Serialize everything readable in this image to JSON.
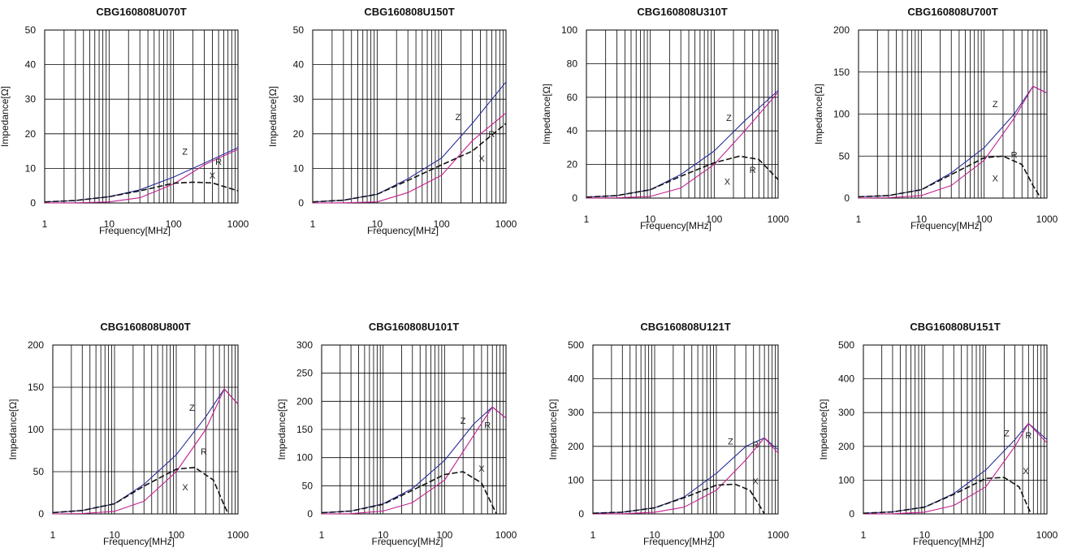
{
  "colors": {
    "Z": "#2b2f9a",
    "R": "#c4208f",
    "X": "#111111",
    "grid": "#000000"
  },
  "chart_data": [
    {
      "type": "line",
      "title": "CBG160808U070T",
      "xlabel": "Frequency[MHz]",
      "ylabel": "Impedance[Ω]",
      "xscale": "log",
      "xlim": [
        1,
        1000
      ],
      "ylim": [
        0,
        50
      ],
      "xticks": [
        1,
        10,
        100,
        1000
      ],
      "xtick_labels": [
        "1",
        "10",
        "100",
        "1000"
      ],
      "yticks": [
        0,
        10,
        20,
        30,
        40,
        50
      ],
      "ytick_labels": [
        "0",
        "10",
        "20",
        "30",
        "40",
        "50"
      ],
      "series": [
        {
          "name": "Z",
          "x": [
            1,
            3,
            10,
            30,
            100,
            300,
            1000
          ],
          "y": [
            0.3,
            0.7,
            1.8,
            3.8,
            7.5,
            11.5,
            16
          ]
        },
        {
          "name": "R",
          "x": [
            1,
            3,
            10,
            30,
            100,
            300,
            1000
          ],
          "y": [
            0,
            0.05,
            0.3,
            1.5,
            5.5,
            11,
            15.5
          ]
        },
        {
          "name": "X",
          "x": [
            1,
            3,
            10,
            30,
            100,
            200,
            400,
            1000
          ],
          "y": [
            0.3,
            0.7,
            1.8,
            3.5,
            5.7,
            6,
            5.8,
            3.5
          ]
        }
      ],
      "labels": [
        {
          "text": "Z",
          "x": 150,
          "y": 14
        },
        {
          "text": "R",
          "x": 500,
          "y": 11
        },
        {
          "text": "X",
          "x": 400,
          "y": 7
        }
      ]
    },
    {
      "type": "line",
      "title": "CBG160808U150T",
      "xlabel": "Frequency[MHz]",
      "ylabel": "Impedance[Ω]",
      "xscale": "log",
      "xlim": [
        1,
        1000
      ],
      "ylim": [
        0,
        50
      ],
      "xticks": [
        1,
        10,
        100,
        1000
      ],
      "xtick_labels": [
        "1",
        "10",
        "100",
        "1000"
      ],
      "yticks": [
        0,
        10,
        20,
        30,
        40,
        50
      ],
      "ytick_labels": [
        "0",
        "10",
        "20",
        "30",
        "40",
        "50"
      ],
      "series": [
        {
          "name": "Z",
          "x": [
            1,
            3,
            10,
            30,
            100,
            300,
            1000
          ],
          "y": [
            0.3,
            0.8,
            2.5,
            7,
            13,
            23,
            35
          ]
        },
        {
          "name": "R",
          "x": [
            1,
            3,
            10,
            30,
            100,
            300,
            1000
          ],
          "y": [
            0,
            0.05,
            0.3,
            3,
            8,
            18,
            26
          ]
        },
        {
          "name": "X",
          "x": [
            1,
            3,
            10,
            30,
            100,
            300,
            1000
          ],
          "y": [
            0.3,
            0.8,
            2.5,
            6.5,
            11,
            15,
            23
          ]
        }
      ],
      "labels": [
        {
          "text": "Z",
          "x": 180,
          "y": 24
        },
        {
          "text": "R",
          "x": 600,
          "y": 19
        },
        {
          "text": "X",
          "x": 420,
          "y": 12
        }
      ]
    },
    {
      "type": "line",
      "title": "CBG160808U310T",
      "xlabel": "Frequency[MHz]",
      "ylabel": "Impedance[Ω]",
      "xscale": "log",
      "xlim": [
        1,
        1000
      ],
      "ylim": [
        0,
        100
      ],
      "xticks": [
        1,
        10,
        100,
        1000
      ],
      "xtick_labels": [
        "1",
        "10",
        "100",
        "1000"
      ],
      "yticks": [
        0,
        20,
        40,
        60,
        80,
        100
      ],
      "ytick_labels": [
        "0",
        "20",
        "40",
        "60",
        "80",
        "100"
      ],
      "series": [
        {
          "name": "Z",
          "x": [
            1,
            3,
            10,
            30,
            100,
            300,
            1000
          ],
          "y": [
            0.6,
            1.5,
            5,
            14,
            28,
            46,
            64
          ]
        },
        {
          "name": "R",
          "x": [
            1,
            3,
            10,
            30,
            100,
            300,
            1000
          ],
          "y": [
            0,
            0.2,
            1,
            6,
            20,
            40,
            63
          ]
        },
        {
          "name": "X",
          "x": [
            1,
            3,
            10,
            30,
            100,
            250,
            500,
            1000
          ],
          "y": [
            0.6,
            1.5,
            5,
            13,
            21,
            25,
            23,
            11
          ]
        }
      ],
      "labels": [
        {
          "text": "Z",
          "x": 170,
          "y": 46
        },
        {
          "text": "R",
          "x": 400,
          "y": 15
        },
        {
          "text": "X",
          "x": 160,
          "y": 8
        }
      ]
    },
    {
      "type": "line",
      "title": "CBG160808U700T",
      "xlabel": "Frequency[MHz]",
      "ylabel": "Impedance[Ω]",
      "xscale": "log",
      "xlim": [
        1,
        1000
      ],
      "ylim": [
        0,
        200
      ],
      "xticks": [
        1,
        10,
        100,
        1000
      ],
      "xtick_labels": [
        "1",
        "10",
        "100",
        "1000"
      ],
      "yticks": [
        0,
        50,
        100,
        150,
        200
      ],
      "ytick_labels": [
        "0",
        "50",
        "100",
        "150",
        "200"
      ],
      "series": [
        {
          "name": "Z",
          "x": [
            1,
            3,
            10,
            30,
            100,
            300,
            600,
            1000
          ],
          "y": [
            1.5,
            3,
            10,
            30,
            60,
            100,
            133,
            125
          ]
        },
        {
          "name": "R",
          "x": [
            1,
            3,
            10,
            30,
            100,
            300,
            600,
            1000
          ],
          "y": [
            0,
            0.5,
            3,
            15,
            45,
            95,
            133,
            125
          ]
        },
        {
          "name": "X",
          "x": [
            1,
            3,
            10,
            30,
            100,
            200,
            400,
            600,
            800
          ],
          "y": [
            1.5,
            3,
            10,
            28,
            48,
            50,
            40,
            15,
            0
          ]
        }
      ],
      "labels": [
        {
          "text": "Z",
          "x": 150,
          "y": 108
        },
        {
          "text": "R",
          "x": 300,
          "y": 48
        },
        {
          "text": "X",
          "x": 150,
          "y": 20
        }
      ]
    },
    {
      "type": "line",
      "title": "CBG160808U800T",
      "xlabel": "Frequency[MHz]",
      "ylabel": "Impedance[Ω]",
      "xscale": "log",
      "xlim": [
        1,
        1000
      ],
      "ylim": [
        0,
        200
      ],
      "xticks": [
        1,
        10,
        100,
        1000
      ],
      "xtick_labels": [
        "1",
        "10",
        "100",
        "1000"
      ],
      "yticks": [
        0,
        50,
        100,
        150,
        200
      ],
      "ytick_labels": [
        "0",
        "50",
        "100",
        "150",
        "200"
      ],
      "series": [
        {
          "name": "Z",
          "x": [
            1,
            3,
            10,
            30,
            100,
            300,
            600,
            1000
          ],
          "y": [
            1.5,
            4,
            12,
            35,
            70,
            115,
            148,
            130
          ]
        },
        {
          "name": "R",
          "x": [
            1,
            3,
            10,
            30,
            100,
            300,
            600,
            1000
          ],
          "y": [
            0,
            0.5,
            3,
            15,
            50,
            100,
            148,
            130
          ]
        },
        {
          "name": "X",
          "x": [
            1,
            3,
            10,
            30,
            100,
            200,
            400,
            600,
            700
          ],
          "y": [
            1.5,
            4,
            12,
            33,
            53,
            55,
            40,
            10,
            0
          ]
        }
      ],
      "labels": [
        {
          "text": "Z",
          "x": 180,
          "y": 122
        },
        {
          "text": "R",
          "x": 280,
          "y": 70
        },
        {
          "text": "X",
          "x": 140,
          "y": 28
        }
      ]
    },
    {
      "type": "line",
      "title": "CBG160808U101T",
      "xlabel": "Frequency[MHz]",
      "ylabel": "Impedance[Ω]",
      "xscale": "log",
      "xlim": [
        1,
        1000
      ],
      "ylim": [
        0,
        300
      ],
      "xticks": [
        1,
        10,
        100,
        1000
      ],
      "xtick_labels": [
        "1",
        "10",
        "100",
        "1000"
      ],
      "yticks": [
        0,
        50,
        100,
        150,
        200,
        250,
        300
      ],
      "ytick_labels": [
        "0",
        "50",
        "100",
        "150",
        "200",
        "250",
        "300"
      ],
      "series": [
        {
          "name": "Z",
          "x": [
            1,
            3,
            10,
            30,
            100,
            300,
            600,
            1000
          ],
          "y": [
            2,
            5,
            18,
            45,
            95,
            160,
            190,
            170
          ]
        },
        {
          "name": "R",
          "x": [
            1,
            3,
            10,
            30,
            100,
            300,
            600,
            1000
          ],
          "y": [
            0,
            0.5,
            5,
            20,
            60,
            140,
            190,
            170
          ]
        },
        {
          "name": "X",
          "x": [
            1,
            3,
            10,
            30,
            100,
            200,
            400,
            600,
            700
          ],
          "y": [
            2,
            5,
            17,
            42,
            70,
            75,
            55,
            15,
            0
          ]
        }
      ],
      "labels": [
        {
          "text": "Z",
          "x": 200,
          "y": 160
        },
        {
          "text": "R",
          "x": 500,
          "y": 152
        },
        {
          "text": "X",
          "x": 400,
          "y": 75
        }
      ]
    },
    {
      "type": "line",
      "title": "CBG160808U121T",
      "xlabel": "Frequency[MHz]",
      "ylabel": "Impedance[Ω]",
      "xscale": "log",
      "xlim": [
        1,
        1000
      ],
      "ylim": [
        0,
        500
      ],
      "xticks": [
        1,
        10,
        100,
        1000
      ],
      "xtick_labels": [
        "1",
        "10",
        "100",
        "1000"
      ],
      "yticks": [
        0,
        100,
        200,
        300,
        400,
        500
      ],
      "ytick_labels": [
        "0",
        "100",
        "200",
        "300",
        "400",
        "500"
      ],
      "series": [
        {
          "name": "Z",
          "x": [
            1,
            3,
            10,
            30,
            100,
            300,
            600,
            1000
          ],
          "y": [
            2,
            5,
            18,
            50,
            120,
            200,
            225,
            190
          ]
        },
        {
          "name": "R",
          "x": [
            1,
            3,
            10,
            30,
            100,
            300,
            600,
            1000
          ],
          "y": [
            0,
            0.5,
            5,
            20,
            70,
            160,
            225,
            180
          ]
        },
        {
          "name": "X",
          "x": [
            1,
            3,
            10,
            30,
            100,
            200,
            350,
            500,
            600
          ],
          "y": [
            2,
            5,
            18,
            48,
            85,
            88,
            70,
            25,
            0
          ]
        }
      ],
      "labels": [
        {
          "text": "Z",
          "x": 170,
          "y": 205
        },
        {
          "text": "R",
          "x": 430,
          "y": 196
        },
        {
          "text": "X",
          "x": 430,
          "y": 88
        }
      ]
    },
    {
      "type": "line",
      "title": "CBG160808U151T",
      "xlabel": "Frequency[MHz]",
      "ylabel": "Impedance[Ω]",
      "xscale": "log",
      "xlim": [
        1,
        1000
      ],
      "ylim": [
        0,
        500
      ],
      "xticks": [
        1,
        10,
        100,
        1000
      ],
      "xtick_labels": [
        "1",
        "10",
        "100",
        "1000"
      ],
      "yticks": [
        0,
        100,
        200,
        300,
        400,
        500
      ],
      "ytick_labels": [
        "0",
        "100",
        "200",
        "300",
        "400",
        "500"
      ],
      "series": [
        {
          "name": "Z",
          "x": [
            1,
            3,
            10,
            30,
            100,
            300,
            500,
            1000
          ],
          "y": [
            2,
            6,
            20,
            60,
            130,
            220,
            268,
            220
          ]
        },
        {
          "name": "R",
          "x": [
            1,
            3,
            10,
            30,
            100,
            300,
            500,
            1000
          ],
          "y": [
            0,
            0.5,
            5,
            25,
            80,
            200,
            268,
            210
          ]
        },
        {
          "name": "X",
          "x": [
            1,
            3,
            10,
            30,
            100,
            200,
            350,
            450,
            550
          ],
          "y": [
            2,
            6,
            20,
            58,
            105,
            108,
            80,
            35,
            0
          ]
        }
      ],
      "labels": [
        {
          "text": "Z",
          "x": 220,
          "y": 230
        },
        {
          "text": "R",
          "x": 500,
          "y": 224
        },
        {
          "text": "X",
          "x": 450,
          "y": 118
        }
      ]
    }
  ]
}
